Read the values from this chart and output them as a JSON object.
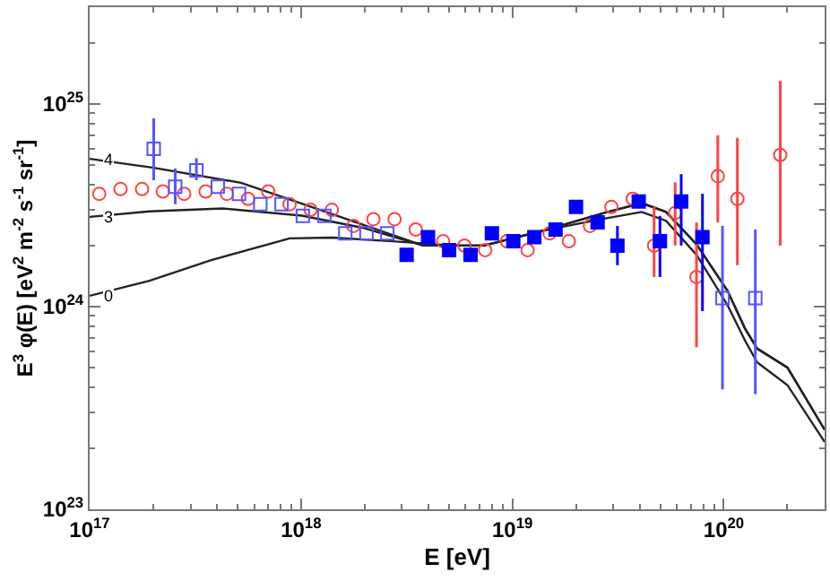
{
  "chart_data": {
    "type": "scatter",
    "xlabel": "E [eV]",
    "ylabel": "E$^{3}$ φ(E) [eV$^{2}$ m$^{-2}$ s$^{-1}$ sr$^{-1}$]",
    "log": "xy",
    "xlim": [
      1e+17,
      3e+20
    ],
    "ylim": [
      1e+23,
      3e+25
    ],
    "xticks": [
      {
        "value": 1e+17,
        "label": "10$^{17}$"
      },
      {
        "value": 1e+18,
        "label": "10$^{18}$"
      },
      {
        "value": 1e+19,
        "label": "10$^{19}$"
      },
      {
        "value": 1e+20,
        "label": "10$^{20}$"
      }
    ],
    "yticks": [
      {
        "value": 1e+23,
        "label": "10$^{23}$"
      },
      {
        "value": 1e+24,
        "label": "10$^{24}$"
      },
      {
        "value": 1e+25,
        "label": "10$^{25}$"
      }
    ],
    "legend": false,
    "series": [
      {
        "type": "line",
        "name": "4",
        "color": "#222222",
        "marker": "none",
        "x": [
          1e+17,
          2.01e+17,
          5.2e+17,
          1.01e+18,
          1.95e+18,
          3.78e+18,
          7.33e+18,
          1.42e+19,
          2.75e+19,
          4.09e+19,
          5.33e+19,
          7.43e+19,
          1.04e+20,
          1.26e+20,
          1.44e+20,
          2e+20,
          3e+20
        ],
        "values": [
          5.36e+24,
          4.84e+24,
          4.08e+24,
          3.22e+24,
          2.54e+24,
          2e+24,
          2e+24,
          2.38e+24,
          2.91e+24,
          3.24e+24,
          2.93e+24,
          2.03e+24,
          1.2e+24,
          7.8e+23,
          6.2e+23,
          5e+23,
          2.47e+23
        ]
      },
      {
        "type": "line",
        "name": "3",
        "color": "#222222",
        "marker": "none",
        "x": [
          1e+17,
          1.92e+17,
          4.26e+17,
          1.01e+18,
          1.95e+18,
          3.78e+18,
          7.33e+18,
          1.42e+19,
          2.75e+19,
          4.09e+19,
          5.33e+19,
          7.43e+19,
          1.04e+20,
          1.26e+20,
          1.44e+20,
          2e+20,
          3e+20
        ],
        "values": [
          2.77e+24,
          2.95e+24,
          3.05e+24,
          2.81e+24,
          2.45e+24,
          2e+24,
          2e+24,
          2.38e+24,
          2.91e+24,
          3.24e+24,
          2.93e+24,
          2.03e+24,
          1.2e+24,
          7.8e+23,
          6.2e+23,
          5e+23,
          2.47e+23
        ]
      },
      {
        "type": "line",
        "name": "0",
        "color": "#222222",
        "marker": "none",
        "x": [
          1e+17,
          1.92e+17,
          3.73e+17,
          8.83e+17,
          1.4e+18,
          2.72e+18,
          5.27e+18,
          7.33e+18,
          1.42e+19,
          2.75e+19,
          4.09e+19,
          5.33e+19,
          7.43e+19,
          1.04e+20,
          1.26e+20,
          1.44e+20,
          2e+20,
          3e+20
        ],
        "values": [
          1.13e+24,
          1.34e+24,
          1.69e+24,
          2.17e+24,
          2.19e+24,
          2.1e+24,
          2e+24,
          2e+24,
          2.38e+24,
          2.72e+24,
          2.93e+24,
          2.65e+24,
          1.8e+24,
          1.02e+24,
          6.8e+23,
          5.3e+23,
          4.1e+23,
          2.15e+23
        ]
      },
      {
        "color": "#ff4444",
        "marker": "circle-open",
        "x": [
          1.11e+17,
          1.4e+17,
          1.77e+17,
          2.22e+17,
          2.8e+17,
          3.54e+17,
          4.46e+17,
          5.62e+17,
          7e+17,
          8.83e+17,
          1.11e+18,
          1.4e+18,
          1.77e+18,
          2.2e+18,
          2.77e+18,
          3.49e+18,
          4.7e+18,
          5.93e+18,
          7.43e+18,
          9.42e+18,
          1.18e+19,
          1.5e+19,
          1.85e+19,
          2.33e+19,
          2.94e+19,
          3.71e+19,
          4.68e+19,
          5.89e+19,
          7.43e+19,
          9.37e+19,
          1.16e+20,
          1.85e+20
        ],
        "values": [
          3.6e+24,
          3.8e+24,
          3.8e+24,
          3.7e+24,
          3.6e+24,
          3.7e+24,
          3.6e+24,
          3.4e+24,
          3.7e+24,
          3.2e+24,
          3e+24,
          3e+24,
          2.5e+24,
          2.7e+24,
          2.7e+24,
          2.4e+24,
          2.1e+24,
          2e+24,
          1.9e+24,
          2.1e+24,
          1.9e+24,
          2.3e+24,
          2.1e+24,
          2.5e+24,
          3.1e+24,
          3.4e+24,
          2e+24,
          2.9e+24,
          1.4e+24,
          4.4e+24,
          3.4e+24,
          5.6e+24
        ],
        "errors": [
          null,
          null,
          null,
          null,
          null,
          null,
          null,
          null,
          null,
          null,
          null,
          null,
          null,
          null,
          null,
          null,
          null,
          null,
          null,
          null,
          null,
          null,
          null,
          null,
          null,
          null,
          [
            1.4e+24,
            3.1e+24
          ],
          [
            2e+24,
            4.1e+24
          ],
          [
            6.3e+23,
            2.6e+24
          ],
          [
            2.6e+24,
            7e+24
          ],
          [
            1.6e+24,
            6.8e+24
          ],
          [
            2e+24,
            1.3e+25
          ]
        ]
      },
      {
        "color": "#5555ff",
        "marker": "square-open",
        "x": [
          2.01e+17,
          2.54e+17,
          3.2e+17,
          4.04e+17,
          5.09e+17,
          6.42e+17,
          8.09e+17,
          1.02e+18,
          1.29e+18,
          1.62e+18,
          2.04e+18,
          2.56e+18,
          9.86e+19,
          1.41e+20
        ],
        "values": [
          6e+24,
          3.9e+24,
          4.7e+24,
          3.9e+24,
          3.6e+24,
          3.2e+24,
          3.2e+24,
          2.8e+24,
          2.8e+24,
          2.3e+24,
          2.3e+24,
          2.3e+24,
          1.1e+24,
          1.1e+24
        ],
        "errors": [
          [
            4.2e+24,
            8.5e+24
          ],
          [
            3.2e+24,
            4.8e+24
          ],
          [
            4.2e+24,
            5.4e+24
          ],
          null,
          null,
          null,
          null,
          null,
          null,
          null,
          null,
          null,
          [
            3.9e+23,
            2.5e+24
          ],
          [
            3.7e+23,
            2.4e+24
          ]
        ]
      },
      {
        "color": "#0000ff",
        "marker": "square",
        "x": [
          3.16e+18,
          3.99e+18,
          5.02e+18,
          6.34e+18,
          8e+18,
          1.01e+19,
          1.27e+19,
          1.6e+19,
          2e+19,
          2.53e+19,
          3.14e+19,
          3.96e+19,
          4.99e+19,
          6.29e+19,
          7.93e+19
        ],
        "values": [
          1.8e+24,
          2.2e+24,
          1.9e+24,
          1.8e+24,
          2.3e+24,
          2.1e+24,
          2.2e+24,
          2.4e+24,
          3.1e+24,
          2.6e+24,
          2e+24,
          3.3e+24,
          2.1e+24,
          3.3e+24,
          2.2e+24
        ],
        "errors": [
          null,
          null,
          null,
          null,
          null,
          null,
          null,
          null,
          null,
          null,
          [
            1.6e+24,
            2.5e+24
          ],
          null,
          [
            1.4e+24,
            2.8e+24
          ],
          [
            2e+24,
            4.5e+24
          ],
          [
            9.5e+23,
            3.6e+24
          ]
        ]
      }
    ]
  }
}
